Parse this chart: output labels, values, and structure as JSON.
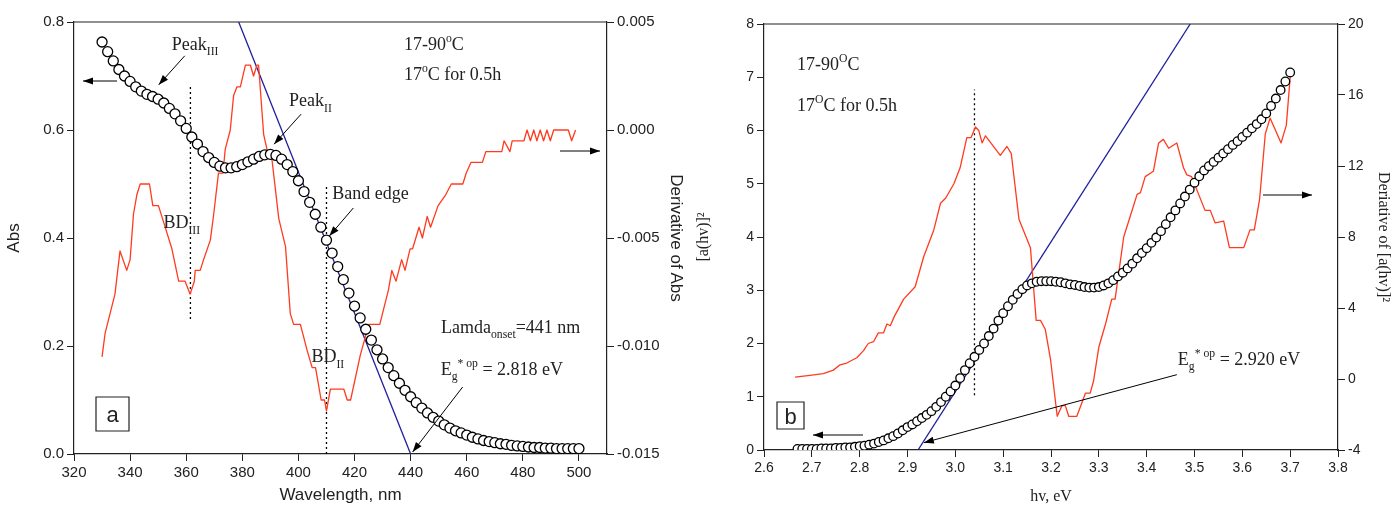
{
  "chart_data": [
    {
      "type": "line",
      "xlabel": "Wavelength, nm",
      "ylabel": "Abs",
      "y2label": "Derivative of Abs",
      "xlim": [
        320,
        510
      ],
      "xticks": [
        320,
        340,
        360,
        380,
        400,
        420,
        440,
        460,
        480,
        500
      ],
      "ylim": [
        0,
        0.8
      ],
      "yticks": [
        {
          "value": 0,
          "label": "0.0"
        },
        0.2,
        0.4,
        0.6,
        0.8
      ],
      "y2lim": [
        -0.015,
        0.005
      ],
      "y2ticks": [
        -0.015,
        {
          "value": -0.01,
          "label": "-0.010"
        },
        -0.005,
        {
          "value": 0,
          "label": "0.000"
        },
        0.005
      ],
      "x": [
        330,
        332,
        334,
        336,
        338,
        340,
        342,
        344,
        346,
        348,
        350,
        352,
        354,
        356,
        358,
        360,
        362,
        364,
        366,
        368,
        370,
        372,
        374,
        376,
        378,
        380,
        382,
        384,
        386,
        388,
        390,
        392,
        394,
        396,
        398,
        400,
        402,
        404,
        406,
        408,
        410,
        412,
        414,
        416,
        418,
        420,
        422,
        424,
        426,
        428,
        430,
        432,
        434,
        436,
        438,
        440,
        442,
        444,
        446,
        448,
        450,
        452,
        454,
        456,
        458,
        460,
        462,
        464,
        466,
        468,
        470,
        472,
        474,
        476,
        478,
        480,
        482,
        484,
        486,
        488,
        490,
        492,
        494,
        496,
        498,
        500
      ],
      "series": [
        {
          "type": "scatter",
          "marker": "circle",
          "color": "#000000",
          "values": [
            0.763,
            0.745,
            0.728,
            0.712,
            0.7,
            0.69,
            0.68,
            0.672,
            0.666,
            0.662,
            0.657,
            0.65,
            0.64,
            0.63,
            0.617,
            0.603,
            0.587,
            0.574,
            0.56,
            0.549,
            0.54,
            0.533,
            0.53,
            0.53,
            0.532,
            0.536,
            0.541,
            0.546,
            0.551,
            0.554,
            0.555,
            0.553,
            0.546,
            0.536,
            0.523,
            0.506,
            0.486,
            0.466,
            0.444,
            0.42,
            0.396,
            0.372,
            0.347,
            0.323,
            0.298,
            0.274,
            0.252,
            0.231,
            0.211,
            0.193,
            0.176,
            0.16,
            0.145,
            0.131,
            0.118,
            0.106,
            0.095,
            0.085,
            0.076,
            0.068,
            0.061,
            0.054,
            0.048,
            0.043,
            0.039,
            0.035,
            0.031,
            0.028,
            0.025,
            0.023,
            0.021,
            0.019,
            0.018,
            0.016,
            0.015,
            0.014,
            0.013,
            0.012,
            0.012,
            0.011,
            0.011,
            0.01,
            0.01,
            0.01,
            0.01,
            0.01
          ]
        },
        {
          "type": "line",
          "axis": "y2",
          "color": "#ff3b1f",
          "x": [
            330,
            331.1,
            334.6,
            336.4,
            338.8,
            340,
            341.2,
            342.4,
            343.6,
            346.9,
            348.1,
            350.1,
            351.3,
            354.9,
            357.3,
            359.6,
            361.4,
            362.9,
            363.2,
            365,
            366.2,
            368.6,
            369.8,
            371.5,
            373.1,
            373.9,
            375.7,
            376.9,
            378.1,
            379.3,
            381.1,
            382.9,
            384,
            385.2,
            385.8,
            387.6,
            388.8,
            390.6,
            393,
            395.4,
            397.1,
            398.3,
            400.7,
            403.1,
            404.9,
            406.1,
            408.1,
            409.3,
            410,
            411.4,
            412.6,
            416.2,
            417.4,
            418.6,
            422.1,
            425.1,
            429,
            432.1,
            433.3,
            434.8,
            436.8,
            438,
            439.8,
            440.7,
            443,
            444.2,
            445.9,
            447.1,
            449.8,
            452.5,
            454.5,
            458.6,
            459.8,
            461.5,
            465.6,
            466.8,
            472.5,
            473.3,
            475.4,
            476.2,
            480.4,
            481.5,
            482.7,
            483.9,
            485,
            486.2,
            487.4,
            488.6,
            489.8,
            491,
            496.2,
            497.4,
            498.8
          ],
          "values": [
            -0.0105,
            -0.0094,
            -0.0076,
            -0.0056,
            -0.0065,
            -0.006,
            -0.0039,
            -0.003,
            -0.0025,
            -0.0025,
            -0.0035,
            -0.0035,
            -0.004,
            -0.0055,
            -0.007,
            -0.007,
            -0.0076,
            -0.007,
            -0.0065,
            -0.0065,
            -0.006,
            -0.0051,
            -0.0039,
            -0.002,
            -0.002,
            -0.0009,
            0,
            0.0016,
            0.002,
            0.002,
            0.003,
            0.003,
            0.0025,
            0.003,
            0.003,
            -0.0002,
            -0.0009,
            -0.0014,
            -0.0041,
            -0.0054,
            -0.0085,
            -0.009,
            -0.009,
            -0.0102,
            -0.011,
            -0.011,
            -0.0125,
            -0.0125,
            -0.013,
            -0.012,
            -0.012,
            -0.012,
            -0.0125,
            -0.0125,
            -0.0104,
            -0.009,
            -0.009,
            -0.0074,
            -0.0065,
            -0.007,
            -0.006,
            -0.0065,
            -0.0055,
            -0.0055,
            -0.0045,
            -0.005,
            -0.004,
            -0.0045,
            -0.0035,
            -0.003,
            -0.0025,
            -0.0025,
            -0.002,
            -0.0015,
            -0.0015,
            -0.001,
            -0.001,
            -0.0005,
            -0.001,
            -0.0005,
            -0.0005,
            0,
            -0.0005,
            0,
            -0.0005,
            0,
            -0.0005,
            0,
            -0.0005,
            0,
            0,
            -0.0005,
            0
          ]
        },
        {
          "type": "line",
          "color": "#1f1f9e",
          "x": [
            378.7,
            440
          ],
          "values": [
            0.8,
            0
          ]
        },
        {
          "type": "line",
          "line_style": "dotted",
          "color": "#000000",
          "x": [
            361.5,
            361.5
          ],
          "values": [
            0.25,
            0.68
          ]
        },
        {
          "type": "line",
          "line_style": "dotted",
          "color": "#000000",
          "x": [
            410,
            410
          ],
          "values": [
            0,
            0.5
          ]
        }
      ],
      "annotations": [
        "17-90$^{o}$C",
        "17$^{o}$C for 0.5h",
        {
          "text": "Peak$_{III}$",
          "x": 349.5,
          "y": 0.68
        },
        {
          "text": "Peak$_{II}$",
          "x": 390.6,
          "y": 0.57
        },
        {
          "text": "BD$_{III}$",
          "x": 361.5,
          "y": 0.42
        },
        {
          "text": "BD$_{II}$",
          "x": 410,
          "y": 0.17
        },
        {
          "text": "Band edge",
          "x": 410.3,
          "y": 0.4
        },
        "Lamda$_{onset}$=441 nm",
        {
          "text": "E$_{g}$$^{* op}$ = 2.818 eV",
          "x": 440,
          "y": 0
        },
        "a"
      ]
    },
    {
      "type": "line",
      "xlabel": "hv, eV",
      "ylabel": "[a(hv)]²",
      "y2label": "Deriative of [a(hv)]²",
      "xlim": [
        2.6,
        3.8
      ],
      "xticks": [
        2.6,
        2.7,
        2.8,
        2.9,
        {
          "value": 3,
          "label": "3.0"
        },
        3.1,
        3.2,
        3.3,
        3.4,
        3.5,
        3.6,
        3.7,
        3.8
      ],
      "ylim": [
        0,
        8
      ],
      "yticks": [
        0,
        1,
        2,
        3,
        4,
        5,
        6,
        7,
        8
      ],
      "y2lim": [
        -4,
        20
      ],
      "y2ticks": [
        -4,
        0,
        4,
        8,
        12,
        16,
        20
      ],
      "x": [
        2.67,
        2.68,
        2.69,
        2.7,
        2.71,
        2.72,
        2.73,
        2.74,
        2.75,
        2.76,
        2.77,
        2.78,
        2.79,
        2.8,
        2.81,
        2.82,
        2.83,
        2.84,
        2.85,
        2.86,
        2.87,
        2.88,
        2.89,
        2.9,
        2.91,
        2.92,
        2.93,
        2.94,
        2.95,
        2.96,
        2.97,
        2.98,
        2.99,
        3,
        3.01,
        3.02,
        3.03,
        3.04,
        3.05,
        3.06,
        3.07,
        3.08,
        3.09,
        3.1,
        3.11,
        3.12,
        3.13,
        3.14,
        3.15,
        3.16,
        3.17,
        3.18,
        3.19,
        3.2,
        3.21,
        3.22,
        3.23,
        3.24,
        3.25,
        3.26,
        3.27,
        3.28,
        3.29,
        3.3,
        3.31,
        3.32,
        3.33,
        3.34,
        3.35,
        3.36,
        3.37,
        3.38,
        3.39,
        3.4,
        3.41,
        3.42,
        3.43,
        3.44,
        3.45,
        3.46,
        3.47,
        3.48,
        3.49,
        3.5,
        3.51,
        3.52,
        3.53,
        3.54,
        3.55,
        3.56,
        3.57,
        3.58,
        3.59,
        3.6,
        3.61,
        3.62,
        3.63,
        3.64,
        3.65,
        3.66,
        3.67,
        3.68,
        3.69,
        3.7
      ],
      "series": [
        {
          "type": "scatter",
          "marker": "circle",
          "color": "#000000",
          "values": [
            0.02,
            0.02,
            0.02,
            0.02,
            0.02,
            0.03,
            0.03,
            0.03,
            0.04,
            0.04,
            0.05,
            0.05,
            0.06,
            0.07,
            0.08,
            0.1,
            0.12,
            0.15,
            0.18,
            0.22,
            0.26,
            0.31,
            0.37,
            0.43,
            0.48,
            0.54,
            0.6,
            0.66,
            0.73,
            0.81,
            0.9,
            1,
            1.1,
            1.21,
            1.35,
            1.5,
            1.63,
            1.75,
            1.88,
            2,
            2.14,
            2.28,
            2.43,
            2.57,
            2.7,
            2.82,
            2.93,
            3.02,
            3.09,
            3.13,
            3.16,
            3.17,
            3.17,
            3.17,
            3.16,
            3.15,
            3.13,
            3.11,
            3.1,
            3.08,
            3.06,
            3.05,
            3.05,
            3.06,
            3.09,
            3.13,
            3.19,
            3.26,
            3.33,
            3.41,
            3.5,
            3.6,
            3.7,
            3.79,
            3.89,
            3.99,
            4.11,
            4.24,
            4.37,
            4.5,
            4.63,
            4.76,
            4.89,
            5.02,
            5.14,
            5.25,
            5.33,
            5.41,
            5.49,
            5.57,
            5.65,
            5.73,
            5.8,
            5.88,
            5.96,
            6.04,
            6.12,
            6.21,
            6.32,
            6.46,
            6.6,
            6.76,
            6.92,
            7.09
          ]
        },
        {
          "type": "line",
          "axis": "y2",
          "color": "#ff3b1f",
          "x": [
            2.665,
            2.696,
            2.724,
            2.745,
            2.759,
            2.773,
            2.787,
            2.794,
            2.808,
            2.818,
            2.829,
            2.839,
            2.85,
            2.857,
            2.864,
            2.872,
            2.892,
            2.916,
            2.934,
            2.955,
            2.969,
            2.98,
            2.997,
            3.01,
            3.024,
            3.033,
            3.042,
            3.049,
            3.056,
            3.063,
            3.094,
            3.108,
            3.117,
            3.133,
            3.157,
            3.169,
            3.178,
            3.188,
            3.199,
            3.213,
            3.223,
            3.23,
            3.237,
            3.254,
            3.272,
            3.282,
            3.289,
            3.3,
            3.314,
            3.327,
            3.334,
            3.352,
            3.366,
            3.38,
            3.387,
            3.397,
            3.414,
            3.425,
            3.435,
            3.446,
            3.463,
            3.477,
            3.484,
            3.494,
            3.522,
            3.533,
            3.543,
            3.561,
            3.573,
            3.603,
            3.616,
            3.625,
            3.636,
            3.648,
            3.658,
            3.681,
            3.692,
            3.7
          ],
          "values": [
            0.1,
            0.2,
            0.3,
            0.5,
            0.8,
            0.9,
            1.1,
            1.2,
            1.6,
            2,
            2.1,
            2.6,
            2.6,
            3.1,
            3,
            3.5,
            4.5,
            5.2,
            6.9,
            8.4,
            9.9,
            10.2,
            11,
            11.9,
            13.6,
            13.6,
            14.2,
            14,
            13.3,
            13.7,
            12.6,
            13.1,
            12.7,
            9,
            7.4,
            3.3,
            3.3,
            2.8,
            1.1,
            -2.1,
            -1.5,
            -1.5,
            -2.1,
            -2.1,
            -0.8,
            -0.8,
            -0.1,
            1.8,
            3.1,
            4.5,
            4.5,
            8,
            9.2,
            10.4,
            10.5,
            11.4,
            11.7,
            13.3,
            13.5,
            13,
            13.3,
            11.9,
            11.5,
            11.4,
            9.5,
            9.5,
            8.8,
            8.9,
            7.4,
            7.4,
            8.4,
            8.4,
            10.1,
            13.8,
            14.7,
            13.3,
            14.3,
            17
          ]
        },
        {
          "type": "line",
          "color": "#1f1f9e",
          "x": [
            2.922,
            3.491
          ],
          "values": [
            0,
            8
          ]
        },
        {
          "type": "line",
          "line_style": "dotted",
          "color": "#000000",
          "x": [
            3.04,
            3.04
          ],
          "values": [
            1.03,
            6.77
          ]
        }
      ],
      "annotations": [
        "17-90$^{O}$C",
        "17$^{O}$C for 0.5h",
        "b",
        {
          "text": "E$_{g}$$^{* op}$ = 2.920 eV",
          "x": 2.93,
          "y": 0.1
        }
      ]
    }
  ]
}
